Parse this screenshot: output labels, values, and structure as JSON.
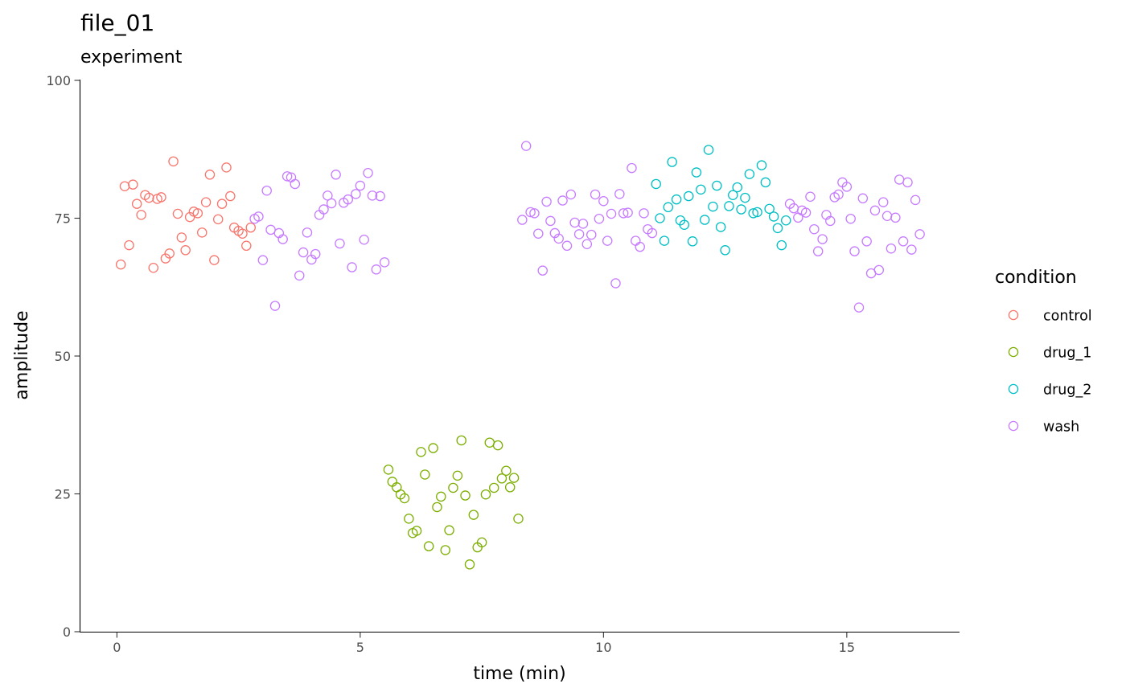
{
  "chart_data": {
    "type": "scatter",
    "title": "file_01",
    "subtitle": "experiment",
    "xlabel": "time (min)",
    "ylabel": "amplitude",
    "xlim": [
      -0.75,
      17.3
    ],
    "ylim": [
      0,
      100
    ],
    "x_ticks": [
      0,
      5,
      10,
      15
    ],
    "y_ticks": [
      0,
      25,
      50,
      75,
      100
    ],
    "x_tick_labels": [
      "0",
      "5",
      "10",
      "15"
    ],
    "y_tick_labels": [
      "0",
      "25",
      "50",
      "75",
      "100"
    ],
    "grid": false,
    "legend": {
      "title": "condition",
      "position": "right"
    },
    "series": [
      {
        "name": "control",
        "color": "#F8766D",
        "points": [
          [
            0.08,
            66.6
          ],
          [
            0.16,
            80.8
          ],
          [
            0.25,
            70.1
          ],
          [
            0.33,
            81.1
          ],
          [
            0.41,
            77.6
          ],
          [
            0.5,
            75.6
          ],
          [
            0.58,
            79.2
          ],
          [
            0.66,
            78.7
          ],
          [
            0.75,
            66.0
          ],
          [
            0.83,
            78.5
          ],
          [
            0.91,
            78.8
          ],
          [
            1.0,
            67.7
          ],
          [
            1.08,
            68.6
          ],
          [
            1.16,
            85.3
          ],
          [
            1.25,
            75.8
          ],
          [
            1.33,
            71.5
          ],
          [
            1.41,
            69.2
          ],
          [
            1.5,
            75.2
          ],
          [
            1.58,
            76.2
          ],
          [
            1.66,
            75.9
          ],
          [
            1.75,
            72.4
          ],
          [
            1.83,
            77.9
          ],
          [
            1.91,
            82.9
          ],
          [
            2.0,
            67.4
          ],
          [
            2.08,
            74.8
          ],
          [
            2.16,
            77.6
          ],
          [
            2.25,
            84.2
          ],
          [
            2.33,
            79.0
          ],
          [
            2.41,
            73.3
          ],
          [
            2.5,
            72.7
          ],
          [
            2.58,
            72.2
          ],
          [
            2.66,
            70.0
          ],
          [
            2.75,
            73.3
          ]
        ]
      },
      {
        "name": "drug_1",
        "color": "#7CAE00",
        "points": [
          [
            5.58,
            29.4
          ],
          [
            5.66,
            27.2
          ],
          [
            5.75,
            26.2
          ],
          [
            5.83,
            24.9
          ],
          [
            5.91,
            24.2
          ],
          [
            6.0,
            20.5
          ],
          [
            6.08,
            17.9
          ],
          [
            6.16,
            18.3
          ],
          [
            6.25,
            32.6
          ],
          [
            6.33,
            28.5
          ],
          [
            6.41,
            15.5
          ],
          [
            6.5,
            33.3
          ],
          [
            6.58,
            22.6
          ],
          [
            6.66,
            24.5
          ],
          [
            6.75,
            14.8
          ],
          [
            6.83,
            18.4
          ],
          [
            6.91,
            26.1
          ],
          [
            7.0,
            28.3
          ],
          [
            7.08,
            34.7
          ],
          [
            7.16,
            24.7
          ],
          [
            7.25,
            12.2
          ],
          [
            7.33,
            21.2
          ],
          [
            7.41,
            15.3
          ],
          [
            7.5,
            16.2
          ],
          [
            7.58,
            24.9
          ],
          [
            7.66,
            34.3
          ],
          [
            7.75,
            26.1
          ],
          [
            7.83,
            33.8
          ],
          [
            7.91,
            27.8
          ],
          [
            8.0,
            29.2
          ],
          [
            8.08,
            26.2
          ],
          [
            8.16,
            27.9
          ],
          [
            8.25,
            20.5
          ]
        ]
      },
      {
        "name": "drug_2",
        "color": "#00BFC4",
        "points": [
          [
            11.08,
            81.2
          ],
          [
            11.16,
            75.0
          ],
          [
            11.25,
            70.9
          ],
          [
            11.33,
            77.0
          ],
          [
            11.41,
            85.2
          ],
          [
            11.5,
            78.4
          ],
          [
            11.58,
            74.6
          ],
          [
            11.66,
            73.8
          ],
          [
            11.75,
            79.0
          ],
          [
            11.83,
            70.8
          ],
          [
            11.91,
            83.3
          ],
          [
            12.0,
            80.2
          ],
          [
            12.08,
            74.7
          ],
          [
            12.16,
            87.4
          ],
          [
            12.25,
            77.1
          ],
          [
            12.33,
            80.9
          ],
          [
            12.41,
            73.4
          ],
          [
            12.5,
            69.2
          ],
          [
            12.58,
            77.2
          ],
          [
            12.66,
            79.2
          ],
          [
            12.75,
            80.6
          ],
          [
            12.83,
            76.6
          ],
          [
            12.91,
            78.7
          ],
          [
            13.0,
            83.0
          ],
          [
            13.08,
            75.9
          ],
          [
            13.16,
            76.1
          ],
          [
            13.25,
            84.6
          ],
          [
            13.33,
            81.5
          ],
          [
            13.41,
            76.7
          ],
          [
            13.5,
            75.3
          ],
          [
            13.58,
            73.2
          ],
          [
            13.66,
            70.1
          ],
          [
            13.75,
            74.6
          ]
        ]
      },
      {
        "name": "wash",
        "color": "#C77CFF",
        "points": [
          [
            2.83,
            74.9
          ],
          [
            2.91,
            75.3
          ],
          [
            3.0,
            67.4
          ],
          [
            3.08,
            80.0
          ],
          [
            3.16,
            72.9
          ],
          [
            3.25,
            59.1
          ],
          [
            3.33,
            72.3
          ],
          [
            3.41,
            71.2
          ],
          [
            3.5,
            82.6
          ],
          [
            3.58,
            82.4
          ],
          [
            3.66,
            81.2
          ],
          [
            3.75,
            64.6
          ],
          [
            3.83,
            68.8
          ],
          [
            3.91,
            72.4
          ],
          [
            4.0,
            67.5
          ],
          [
            4.08,
            68.5
          ],
          [
            4.16,
            75.6
          ],
          [
            4.25,
            76.6
          ],
          [
            4.33,
            79.1
          ],
          [
            4.41,
            77.7
          ],
          [
            4.5,
            82.9
          ],
          [
            4.58,
            70.4
          ],
          [
            4.66,
            77.8
          ],
          [
            4.75,
            78.4
          ],
          [
            4.83,
            66.1
          ],
          [
            4.91,
            79.4
          ],
          [
            5.0,
            80.9
          ],
          [
            5.08,
            71.1
          ],
          [
            5.16,
            83.2
          ],
          [
            5.25,
            79.1
          ],
          [
            5.33,
            65.7
          ],
          [
            5.41,
            79.0
          ],
          [
            5.5,
            67.0
          ],
          [
            8.33,
            74.7
          ],
          [
            8.41,
            88.1
          ],
          [
            8.5,
            76.1
          ],
          [
            8.58,
            75.9
          ],
          [
            8.66,
            72.2
          ],
          [
            8.75,
            65.5
          ],
          [
            8.83,
            78.0
          ],
          [
            8.91,
            74.5
          ],
          [
            9.0,
            72.3
          ],
          [
            9.08,
            71.3
          ],
          [
            9.16,
            78.2
          ],
          [
            9.25,
            70.0
          ],
          [
            9.33,
            79.3
          ],
          [
            9.41,
            74.2
          ],
          [
            9.5,
            72.1
          ],
          [
            9.58,
            74.0
          ],
          [
            9.66,
            70.3
          ],
          [
            9.75,
            72.0
          ],
          [
            9.83,
            79.3
          ],
          [
            9.91,
            74.9
          ],
          [
            10.0,
            78.1
          ],
          [
            10.08,
            70.9
          ],
          [
            10.16,
            75.8
          ],
          [
            10.25,
            63.2
          ],
          [
            10.33,
            79.4
          ],
          [
            10.41,
            75.9
          ],
          [
            10.5,
            76.0
          ],
          [
            10.58,
            84.1
          ],
          [
            10.66,
            70.9
          ],
          [
            10.75,
            69.8
          ],
          [
            10.83,
            75.9
          ],
          [
            10.91,
            73.0
          ],
          [
            11.0,
            72.3
          ],
          [
            13.83,
            77.6
          ],
          [
            13.91,
            76.8
          ],
          [
            14.0,
            75.1
          ],
          [
            14.08,
            76.4
          ],
          [
            14.16,
            76.0
          ],
          [
            14.25,
            78.9
          ],
          [
            14.33,
            73.0
          ],
          [
            14.41,
            69.0
          ],
          [
            14.5,
            71.2
          ],
          [
            14.58,
            75.6
          ],
          [
            14.66,
            74.5
          ],
          [
            14.75,
            78.8
          ],
          [
            14.83,
            79.3
          ],
          [
            14.91,
            81.5
          ],
          [
            15.0,
            80.7
          ],
          [
            15.08,
            74.9
          ],
          [
            15.16,
            69.0
          ],
          [
            15.25,
            58.8
          ],
          [
            15.33,
            78.6
          ],
          [
            15.41,
            70.8
          ],
          [
            15.5,
            65.0
          ],
          [
            15.58,
            76.4
          ],
          [
            15.66,
            65.6
          ],
          [
            15.75,
            77.9
          ],
          [
            15.83,
            75.4
          ],
          [
            15.91,
            69.5
          ],
          [
            16.0,
            75.1
          ],
          [
            16.08,
            82.0
          ],
          [
            16.16,
            70.8
          ],
          [
            16.25,
            81.5
          ],
          [
            16.33,
            69.3
          ],
          [
            16.41,
            78.3
          ],
          [
            16.5,
            72.1
          ]
        ]
      }
    ]
  }
}
